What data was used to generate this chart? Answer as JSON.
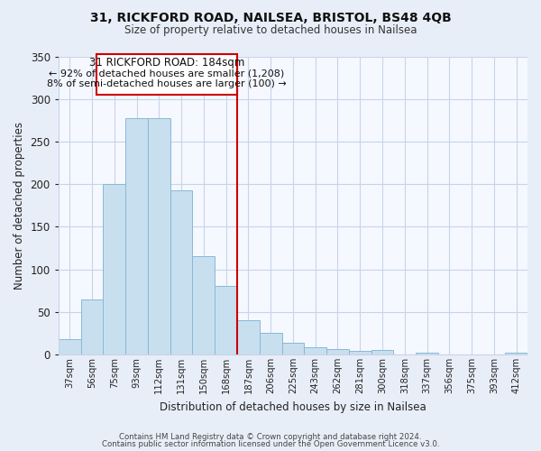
{
  "title1": "31, RICKFORD ROAD, NAILSEA, BRISTOL, BS48 4QB",
  "title2": "Size of property relative to detached houses in Nailsea",
  "xlabel": "Distribution of detached houses by size in Nailsea",
  "ylabel": "Number of detached properties",
  "bar_labels": [
    "37sqm",
    "56sqm",
    "75sqm",
    "93sqm",
    "112sqm",
    "131sqm",
    "150sqm",
    "168sqm",
    "187sqm",
    "206sqm",
    "225sqm",
    "243sqm",
    "262sqm",
    "281sqm",
    "300sqm",
    "318sqm",
    "337sqm",
    "356sqm",
    "375sqm",
    "393sqm",
    "412sqm"
  ],
  "bar_values": [
    18,
    65,
    200,
    277,
    277,
    193,
    115,
    80,
    40,
    25,
    14,
    8,
    6,
    4,
    5,
    0,
    2,
    0,
    0,
    0,
    2
  ],
  "bar_color": "#c8dff0",
  "bar_edge_color": "#8ab8d4",
  "vline_color": "#cc0000",
  "annotation_title": "31 RICKFORD ROAD: 184sqm",
  "annotation_line1": "← 92% of detached houses are smaller (1,208)",
  "annotation_line2": "8% of semi-detached houses are larger (100) →",
  "annotation_box_color": "#ffffff",
  "annotation_box_edge": "#cc0000",
  "ylim": [
    0,
    350
  ],
  "yticks": [
    0,
    50,
    100,
    150,
    200,
    250,
    300,
    350
  ],
  "footer1": "Contains HM Land Registry data © Crown copyright and database right 2024.",
  "footer2": "Contains public sector information licensed under the Open Government Licence v3.0.",
  "bg_color": "#e8eef8",
  "plot_bg_color": "#f5f8ff",
  "grid_color": "#c8d4e8"
}
